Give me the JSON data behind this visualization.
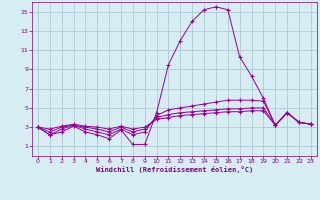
{
  "x": [
    0,
    1,
    2,
    3,
    4,
    5,
    6,
    7,
    8,
    9,
    10,
    11,
    12,
    13,
    14,
    15,
    16,
    17,
    18,
    19,
    20,
    21,
    22,
    23
  ],
  "line1": [
    3.0,
    2.2,
    2.5,
    3.1,
    2.5,
    2.2,
    1.8,
    2.7,
    1.2,
    1.2,
    4.5,
    9.5,
    12.0,
    14.0,
    15.2,
    15.5,
    15.2,
    10.3,
    8.3,
    6.0,
    3.2,
    4.5,
    3.5,
    3.3
  ],
  "line2": [
    3.0,
    2.2,
    2.8,
    3.2,
    2.8,
    2.5,
    2.2,
    2.8,
    2.2,
    2.5,
    4.2,
    4.8,
    5.0,
    5.2,
    5.4,
    5.6,
    5.8,
    5.8,
    5.8,
    5.7,
    3.2,
    4.5,
    3.5,
    3.3
  ],
  "line3": [
    3.0,
    2.5,
    3.0,
    3.2,
    3.0,
    2.8,
    2.5,
    3.0,
    2.5,
    2.8,
    4.0,
    4.3,
    4.5,
    4.6,
    4.7,
    4.8,
    4.9,
    4.9,
    5.0,
    5.0,
    3.2,
    4.5,
    3.5,
    3.3
  ],
  "line4": [
    3.0,
    2.8,
    3.1,
    3.3,
    3.1,
    3.0,
    2.8,
    3.1,
    2.8,
    3.0,
    3.8,
    4.0,
    4.2,
    4.3,
    4.4,
    4.5,
    4.6,
    4.6,
    4.7,
    4.7,
    3.2,
    4.5,
    3.5,
    3.3
  ],
  "line_color": "#990099",
  "bg_color": "#d5edf3",
  "grid_color": "#b0c8d0",
  "xlabel": "Windchill (Refroidissement éolien,°C)",
  "xlabel_color": "#800080",
  "tick_color": "#800080",
  "ylim": [
    0,
    16
  ],
  "xlim": [
    -0.5,
    23.5
  ],
  "yticks": [
    1,
    3,
    5,
    7,
    9,
    11,
    13,
    15
  ],
  "xticks": [
    0,
    1,
    2,
    3,
    4,
    5,
    6,
    7,
    8,
    9,
    10,
    11,
    12,
    13,
    14,
    15,
    16,
    17,
    18,
    19,
    20,
    21,
    22,
    23
  ]
}
